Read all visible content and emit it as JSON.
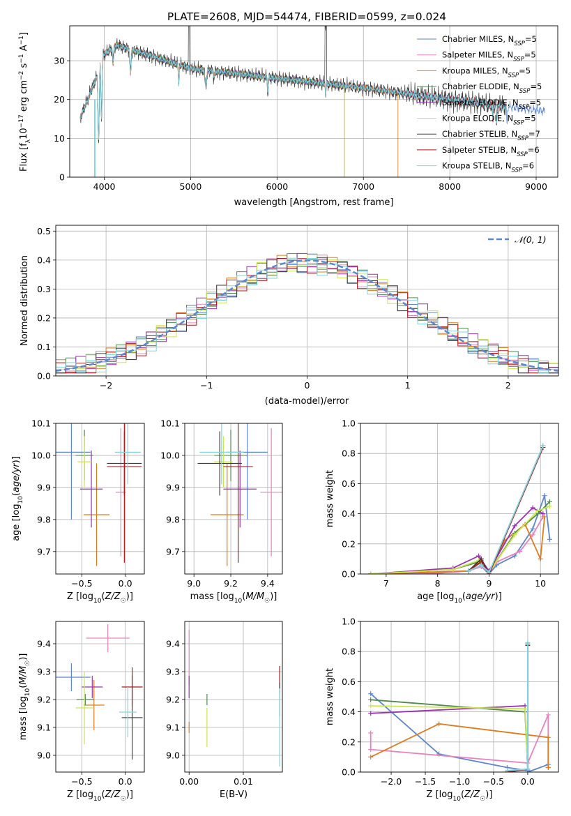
{
  "figure": {
    "title": "PLATE=2608, MJD=54474, FIBERID=0599, z=0.024"
  },
  "colors": {
    "chabrier_miles": "#5b86d0",
    "salpeter_miles": "#e882bd",
    "kroupa_miles": "#e07b1e",
    "chabrier_elodie": "#4f8a4f",
    "salpeter_elodie": "#9b30b5",
    "kroupa_elodie": "#c9e84a",
    "chabrier_stelib": "#3d3d3d",
    "salpeter_stelib": "#b01818",
    "kroupa_stelib": "#7fd6e0",
    "normal": "#5b86d0"
  },
  "chart_data": [
    {
      "type": "line",
      "title": "PLATE=2608, MJD=54474, FIBERID=0599, z=0.024",
      "xlabel": "wavelength [Angstrom, rest frame]",
      "ylabel_html": "Flux [f_λ10^-17 erg cm^-2 s^-1 A^-1]",
      "xlim": [
        3600,
        9250
      ],
      "ylim": [
        0,
        39
      ],
      "xticks": [
        "4000",
        "5000",
        "6000",
        "7000",
        "8000",
        "9000"
      ],
      "yticks": [
        "0",
        "10",
        "20",
        "30"
      ],
      "legend_position": "top-right",
      "series": [
        {
          "key": "chabrier_miles",
          "name": "Chabrier MILES, N",
          "sub": "SSP",
          "suffix": "=5",
          "end": 9100
        },
        {
          "key": "salpeter_miles",
          "name": "Salpeter MILES, N",
          "sub": "SSP",
          "suffix": "=5",
          "end": 7400
        },
        {
          "key": "kroupa_miles",
          "name": "Kroupa MILES, N",
          "sub": "SSP",
          "suffix": "=5",
          "end": 7400
        },
        {
          "key": "chabrier_elodie",
          "name": "Chabrier ELODIE, N",
          "sub": "SSP",
          "suffix": "=5",
          "end": 6780
        },
        {
          "key": "salpeter_elodie",
          "name": "Salpeter ELODIE, N",
          "sub": "SSP",
          "suffix": "=5",
          "end": 6780
        },
        {
          "key": "kroupa_elodie",
          "name": "Kroupa ELODIE, N",
          "sub": "SSP",
          "suffix": "=5",
          "end": 6780
        },
        {
          "key": "chabrier_stelib",
          "name": "Chabrier STELIB, N",
          "sub": "SSP",
          "suffix": "=7",
          "end": 8650
        },
        {
          "key": "salpeter_stelib",
          "name": "Salpeter STELIB, N",
          "sub": "SSP",
          "suffix": "=6",
          "end": 8650
        },
        {
          "key": "kroupa_stelib",
          "name": "Kroupa STELIB, N",
          "sub": "SSP",
          "suffix": "=6",
          "end": 8650
        }
      ]
    },
    {
      "type": "histogram",
      "xlabel": "(data-model)/error",
      "ylabel": "Normed distribution",
      "xlim": [
        -2.5,
        2.5
      ],
      "ylim": [
        0,
        0.52
      ],
      "xticks": [
        "−2",
        "−1",
        "0",
        "1",
        "2"
      ],
      "yticks": [
        "0.0",
        "0.1",
        "0.2",
        "0.3",
        "0.4",
        "0.5"
      ],
      "legend": "𝒩(0, 1)",
      "legend_position": "top-right",
      "bin_width": 0.1
    },
    {
      "type": "scatter",
      "xlabel": "Z [log10(Z/Z☉)]",
      "ylabel": "age [log10(age/yr)]",
      "xlim": [
        -0.8,
        0.22
      ],
      "ylim": [
        9.63,
        10.1
      ],
      "xticks": [
        "−0.5",
        "0.0"
      ],
      "yticks": [
        "9.7",
        "9.8",
        "9.9",
        "10.0",
        "10.1"
      ],
      "points": [
        {
          "key": "chabrier_miles",
          "x": -0.62,
          "xerr": 0.22,
          "y": 10.01,
          "yerr": 0.21
        },
        {
          "key": "salpeter_miles",
          "x": -0.05,
          "xerr": 0.06,
          "y": 9.885,
          "yerr": 0.2
        },
        {
          "key": "kroupa_miles",
          "x": -0.33,
          "xerr": 0.15,
          "y": 9.815,
          "yerr": 0.16
        },
        {
          "key": "chabrier_elodie",
          "x": -0.47,
          "xerr": 0.1,
          "y": 10.0,
          "yerr": 0.08
        },
        {
          "key": "salpeter_elodie",
          "x": -0.39,
          "xerr": 0.13,
          "y": 9.895,
          "yerr": 0.12
        },
        {
          "key": "kroupa_elodie",
          "x": -0.47,
          "xerr": 0.08,
          "y": 9.98,
          "yerr": 0.08
        },
        {
          "key": "chabrier_stelib",
          "x": -0.01,
          "xerr": 0.2,
          "y": 9.975,
          "yerr": 0.1
        },
        {
          "key": "salpeter_stelib",
          "x": -0.01,
          "xerr": 0.2,
          "y": 9.965,
          "yerr": 0.3
        },
        {
          "key": "kroupa_stelib",
          "x": 0.03,
          "xerr": 0.15,
          "y": 10.01,
          "yerr": 0.1
        }
      ]
    },
    {
      "type": "scatter",
      "xlabel": "mass [log10(M/M☉)]",
      "ylabel": "",
      "xlim": [
        8.95,
        9.48
      ],
      "ylim": [
        9.63,
        10.1
      ],
      "xticks": [
        "9.0",
        "9.2",
        "9.4"
      ],
      "yticks": [
        "9.7",
        "9.8",
        "9.9",
        "10.0",
        "10.1"
      ],
      "points": [
        {
          "key": "chabrier_miles",
          "x": 9.29,
          "xerr": 0.11,
          "y": 10.01,
          "yerr": 0.21
        },
        {
          "key": "salpeter_miles",
          "x": 9.42,
          "xerr": 0.06,
          "y": 9.885,
          "yerr": 0.2
        },
        {
          "key": "kroupa_miles",
          "x": 9.18,
          "xerr": 0.09,
          "y": 9.815,
          "yerr": 0.16
        },
        {
          "key": "chabrier_elodie",
          "x": 9.2,
          "xerr": 0.09,
          "y": 10.0,
          "yerr": 0.08
        },
        {
          "key": "salpeter_elodie",
          "x": 9.25,
          "xerr": 0.09,
          "y": 9.895,
          "yerr": 0.12
        },
        {
          "key": "kroupa_elodie",
          "x": 9.16,
          "xerr": 0.05,
          "y": 9.98,
          "yerr": 0.08
        },
        {
          "key": "chabrier_stelib",
          "x": 9.14,
          "xerr": 0.12,
          "y": 9.975,
          "yerr": 0.1
        },
        {
          "key": "salpeter_stelib",
          "x": 9.24,
          "xerr": 0.08,
          "y": 9.965,
          "yerr": 0.3
        },
        {
          "key": "kroupa_stelib",
          "x": 9.15,
          "xerr": 0.12,
          "y": 10.01,
          "yerr": 0.1
        }
      ]
    },
    {
      "type": "line",
      "xlabel": "age [log10(age/yr)]",
      "ylabel": "mass weight",
      "xlim": [
        6.5,
        10.35
      ],
      "ylim": [
        0,
        1.0
      ],
      "xticks": [
        "7",
        "8",
        "9",
        "10"
      ],
      "yticks": [
        "0.0",
        "0.2",
        "0.4",
        "0.6",
        "0.8",
        "1.0"
      ],
      "series": [
        {
          "key": "chabrier_miles",
          "x": [
            6.7,
            7.8,
            8.6,
            8.85,
            9.0,
            9.15,
            9.5,
            9.85,
            10.08,
            10.18
          ],
          "y": [
            0.0,
            0.01,
            0.02,
            0.05,
            0.0,
            0.06,
            0.12,
            0.3,
            0.52,
            0.23
          ]
        },
        {
          "key": "salpeter_miles",
          "x": [
            6.7,
            7.8,
            8.6,
            8.85,
            9.0,
            9.15,
            9.6,
            9.85,
            10.05
          ],
          "y": [
            0.0,
            0.0,
            0.02,
            0.05,
            0.01,
            0.08,
            0.15,
            0.26,
            0.38
          ]
        },
        {
          "key": "kroupa_miles",
          "x": [
            6.7,
            8.6,
            8.85,
            9.0,
            9.3,
            9.7,
            10.0,
            10.08
          ],
          "y": [
            0.0,
            0.02,
            0.09,
            0.01,
            0.22,
            0.33,
            0.1,
            0.38
          ]
        },
        {
          "key": "chabrier_elodie",
          "x": [
            6.7,
            8.3,
            8.8,
            9.0,
            9.5,
            9.95,
            10.18
          ],
          "y": [
            0.0,
            0.03,
            0.08,
            0.01,
            0.27,
            0.4,
            0.48
          ]
        },
        {
          "key": "salpeter_elodie",
          "x": [
            6.7,
            8.3,
            8.8,
            9.0,
            9.5,
            9.85,
            10.05
          ],
          "y": [
            0.0,
            0.04,
            0.12,
            0.02,
            0.32,
            0.44,
            0.4
          ]
        },
        {
          "key": "kroupa_elodie",
          "x": [
            6.7,
            8.3,
            8.8,
            9.0,
            9.5,
            9.95,
            10.18
          ],
          "y": [
            0.0,
            0.03,
            0.09,
            0.01,
            0.26,
            0.42,
            0.45
          ]
        },
        {
          "key": "chabrier_stelib",
          "x": [
            8.6,
            8.85,
            9.0,
            10.05
          ],
          "y": [
            0.02,
            0.1,
            0.0,
            0.85
          ]
        },
        {
          "key": "salpeter_stelib",
          "x": [
            8.6,
            8.85,
            9.0,
            10.05
          ],
          "y": [
            0.02,
            0.08,
            0.0,
            0.84
          ]
        },
        {
          "key": "kroupa_stelib",
          "x": [
            8.6,
            8.85,
            9.0,
            10.05
          ],
          "y": [
            0.02,
            0.06,
            0.01,
            0.85
          ]
        }
      ]
    },
    {
      "type": "scatter",
      "xlabel": "Z [log10(Z/Z☉)]",
      "ylabel": "mass [log10(M/M☉)]",
      "xlim": [
        -0.8,
        0.22
      ],
      "ylim": [
        8.94,
        9.48
      ],
      "xticks": [
        "−0.5",
        "0.0"
      ],
      "yticks": [
        "9.0",
        "9.1",
        "9.2",
        "9.3",
        "9.4"
      ],
      "points": [
        {
          "key": "chabrier_miles",
          "x": -0.62,
          "xerr": 0.22,
          "y": 9.28,
          "yerr": 0.05
        },
        {
          "key": "salpeter_miles",
          "x": -0.2,
          "xerr": 0.25,
          "y": 9.42,
          "yerr": 0.05
        },
        {
          "key": "kroupa_miles",
          "x": -0.36,
          "xerr": 0.12,
          "y": 9.18,
          "yerr": 0.09
        },
        {
          "key": "chabrier_elodie",
          "x": -0.46,
          "xerr": 0.1,
          "y": 9.2,
          "yerr": 0.02
        },
        {
          "key": "salpeter_elodie",
          "x": -0.38,
          "xerr": 0.12,
          "y": 9.245,
          "yerr": 0.04
        },
        {
          "key": "kroupa_elodie",
          "x": -0.47,
          "xerr": 0.1,
          "y": 9.17,
          "yerr": 0.13
        },
        {
          "key": "chabrier_stelib",
          "x": 0.08,
          "xerr": 0.12,
          "y": 9.135,
          "yerr": 0.15
        },
        {
          "key": "salpeter_stelib",
          "x": 0.08,
          "xerr": 0.12,
          "y": 9.245,
          "yerr": 0.07
        },
        {
          "key": "kroupa_stelib",
          "x": 0.03,
          "xerr": 0.1,
          "y": 9.155,
          "yerr": 0.09
        }
      ]
    },
    {
      "type": "scatter",
      "xlabel": "E(B-V)",
      "ylabel": "",
      "xlim": [
        -0.0008,
        0.0172
      ],
      "ylim": [
        8.94,
        9.48
      ],
      "xticks": [
        "0.00",
        "0.01"
      ],
      "yticks": [
        "9.0",
        "9.1",
        "9.2",
        "9.3",
        "9.4"
      ],
      "points": [
        {
          "key": "salpeter_miles",
          "x": 0.0,
          "y": 9.35,
          "yerr": 0.1
        },
        {
          "key": "salpeter_elodie",
          "x": 0.0,
          "y": 9.245,
          "yerr": 0.04
        },
        {
          "key": "kroupa_miles",
          "x": 0.0,
          "y": 9.1,
          "yerr": 0.02
        },
        {
          "key": "chabrier_elodie",
          "x": 0.0033,
          "y": 9.2,
          "yerr": 0.02
        },
        {
          "key": "kroupa_elodie",
          "x": 0.0033,
          "y": 9.1,
          "yerr": 0.07
        },
        {
          "key": "salpeter_stelib",
          "x": 0.0167,
          "y": 9.27,
          "yerr": 0.05
        },
        {
          "key": "chabrier_stelib",
          "x": 0.0167,
          "y": 9.2,
          "yerr": 0.06
        },
        {
          "key": "kroupa_stelib",
          "x": 0.0167,
          "y": 9.1,
          "yerr": 0.14
        }
      ]
    },
    {
      "type": "line",
      "xlabel": "Z [log10(Z/Z☉)]",
      "ylabel": "mass weight",
      "xlim": [
        -2.45,
        0.45
      ],
      "ylim": [
        0,
        1.0
      ],
      "xticks": [
        "−2.0",
        "−1.5",
        "−1.0",
        "−0.5",
        "0.0"
      ],
      "yticks": [
        "0.0",
        "0.2",
        "0.4",
        "0.6",
        "0.8",
        "1.0"
      ],
      "series": [
        {
          "key": "chabrier_miles",
          "x": [
            -2.3,
            -1.3,
            -0.3,
            0.0,
            0.0,
            0.3
          ],
          "y": [
            0.52,
            0.12,
            0.03,
            0.01,
            0.0,
            0.05
          ]
        },
        {
          "key": "salpeter_miles",
          "x": [
            -2.3,
            -2.3,
            0.0,
            0.3,
            0.3
          ],
          "y": [
            0.26,
            0.15,
            0.06,
            0.38,
            0.03
          ]
        },
        {
          "key": "kroupa_miles",
          "x": [
            -2.3,
            -1.3,
            0.3,
            0.3
          ],
          "y": [
            0.1,
            0.32,
            0.23,
            0.03
          ]
        },
        {
          "key": "chabrier_elodie",
          "x": [
            -2.3,
            -0.04,
            0.0
          ],
          "y": [
            0.48,
            0.4,
            0.02
          ]
        },
        {
          "key": "salpeter_elodie",
          "x": [
            -2.3,
            -0.04,
            0.0
          ],
          "y": [
            0.39,
            0.44,
            0.02
          ]
        },
        {
          "key": "kroupa_elodie",
          "x": [
            -2.3,
            -0.04,
            0.0
          ],
          "y": [
            0.44,
            0.42,
            0.02
          ]
        },
        {
          "key": "chabrier_stelib",
          "x": [
            -0.3,
            0.0,
            0.0
          ],
          "y": [
            0.0,
            0.02,
            0.85
          ]
        },
        {
          "key": "salpeter_stelib",
          "x": [
            -0.3,
            0.0,
            0.0
          ],
          "y": [
            0.0,
            0.02,
            0.84
          ]
        },
        {
          "key": "kroupa_stelib",
          "x": [
            -0.3,
            0.0,
            0.0
          ],
          "y": [
            0.01,
            0.02,
            0.86
          ]
        }
      ]
    }
  ]
}
